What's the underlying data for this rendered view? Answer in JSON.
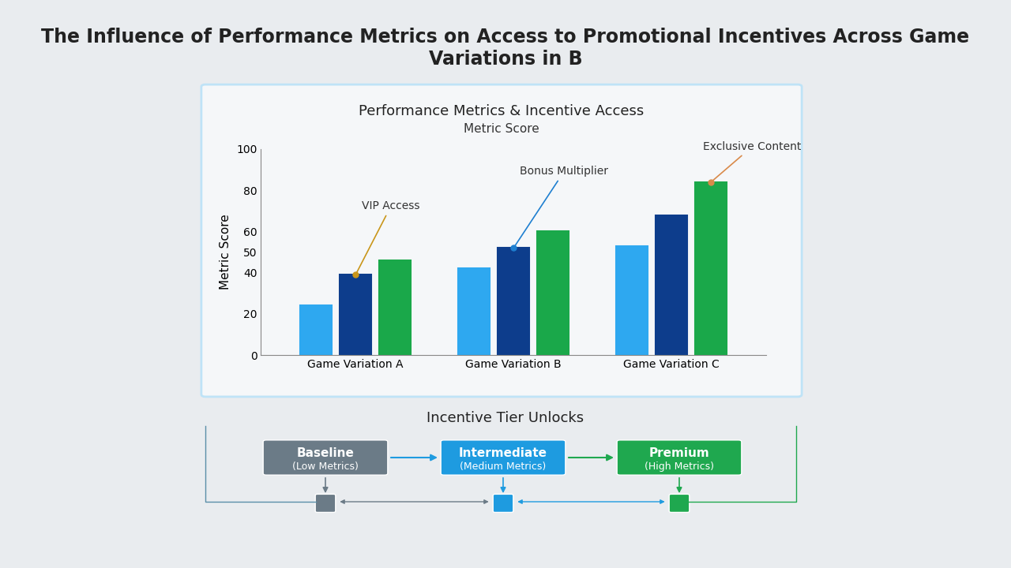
{
  "title": "The Influence of Performance Metrics on Access to Promotional Incentives Across Game Variations in B",
  "chart_data": {
    "type": "bar",
    "title": "Performance Metrics & Incentive Access",
    "subtitle": "Metric Score",
    "y_label": "Metric Score",
    "categories": [
      "Game Variation A",
      "Game Variation B",
      "Game Variation C"
    ],
    "series": [
      {
        "color": "#2ea8f0",
        "values": [
          24,
          42,
          53
        ]
      },
      {
        "color": "#0d3d8c",
        "values": [
          39,
          52,
          68
        ]
      },
      {
        "color": "#1aa84a",
        "values": [
          46,
          60,
          84
        ]
      }
    ],
    "ylim": [
      0,
      100
    ],
    "yticks": [
      0,
      20,
      40,
      50,
      60,
      80,
      100
    ],
    "grid": false,
    "annotations": [
      {
        "text": "VIP Access",
        "category": "Game Variation A",
        "value": 39
      },
      {
        "text": "Bonus Multiplier",
        "category": "Game Variation B",
        "value": 52
      },
      {
        "text": "Exclusive Content",
        "category": "Game Variation C",
        "value": 84
      }
    ]
  },
  "incentive_tiers": {
    "title": "Incentive Tier Unlocks",
    "tiers": [
      {
        "name": "Baseline",
        "detail": "(Low Metrics)",
        "color": "#6b7b87"
      },
      {
        "name": "Intermediate",
        "detail": "(Medium Metrics)",
        "color": "#1e9be0"
      },
      {
        "name": "Premium",
        "detail": "(High Metrics)",
        "color": "#1fa84f"
      }
    ]
  }
}
